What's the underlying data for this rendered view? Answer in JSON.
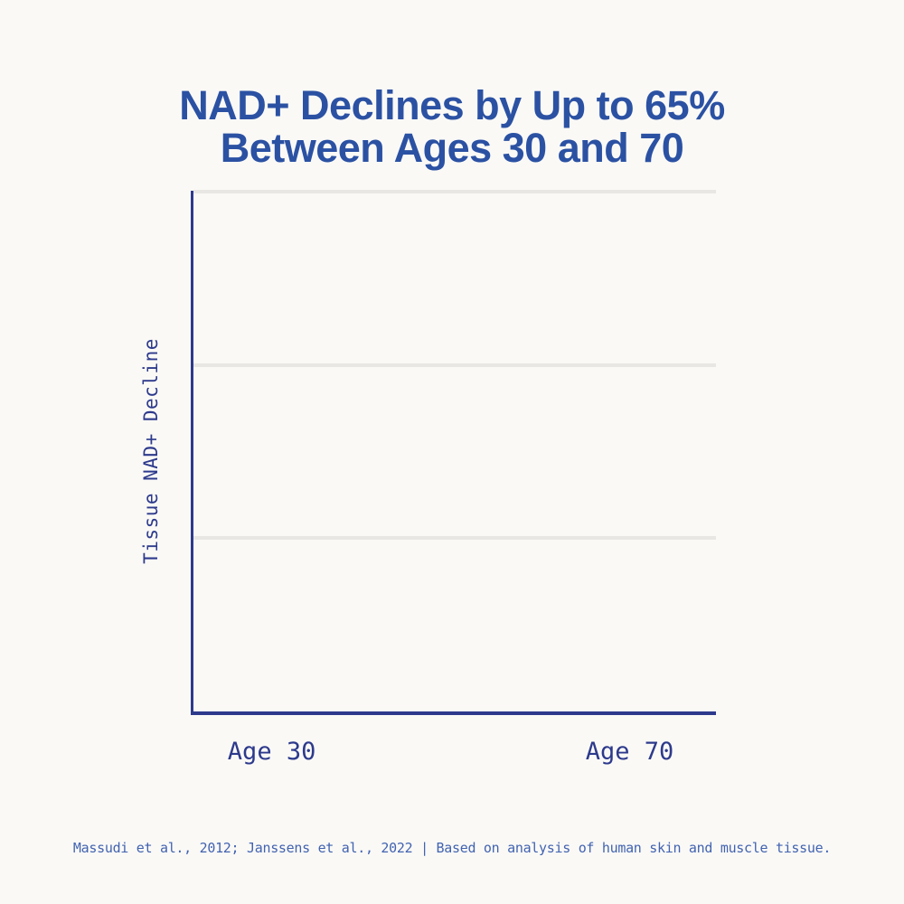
{
  "header": {
    "title_line1": "NAD+ Declines by Up to 65%",
    "title_line2": "Between Ages 30 and 70"
  },
  "chart_data": {
    "type": "bar",
    "title": "NAD+ Declines by Up to 65% Between Ages 30 and 70",
    "categories": [
      "Age 30",
      "Age 70"
    ],
    "values": [
      null,
      null
    ],
    "xlabel": "",
    "ylabel": "Tissue NAD+ Decline",
    "y_tick_labels": [],
    "legend_position": "none",
    "grid": "3 light horizontal gridlines dividing the plot into thirds; no vertical gridlines",
    "plot_content": "plot area is empty in this frame — no bars or data marks rendered"
  },
  "footer": {
    "text": "Massudi et al., 2012; Janssens et al., 2022 | Based on analysis of human skin and muscle tissue."
  },
  "colors": {
    "background": "#faf9f6",
    "title_blue": "#2b51a3",
    "axis_navy": "#2d3a8c",
    "gridline_gray": "#e8e7e4",
    "footer_blue": "#4263b0"
  }
}
